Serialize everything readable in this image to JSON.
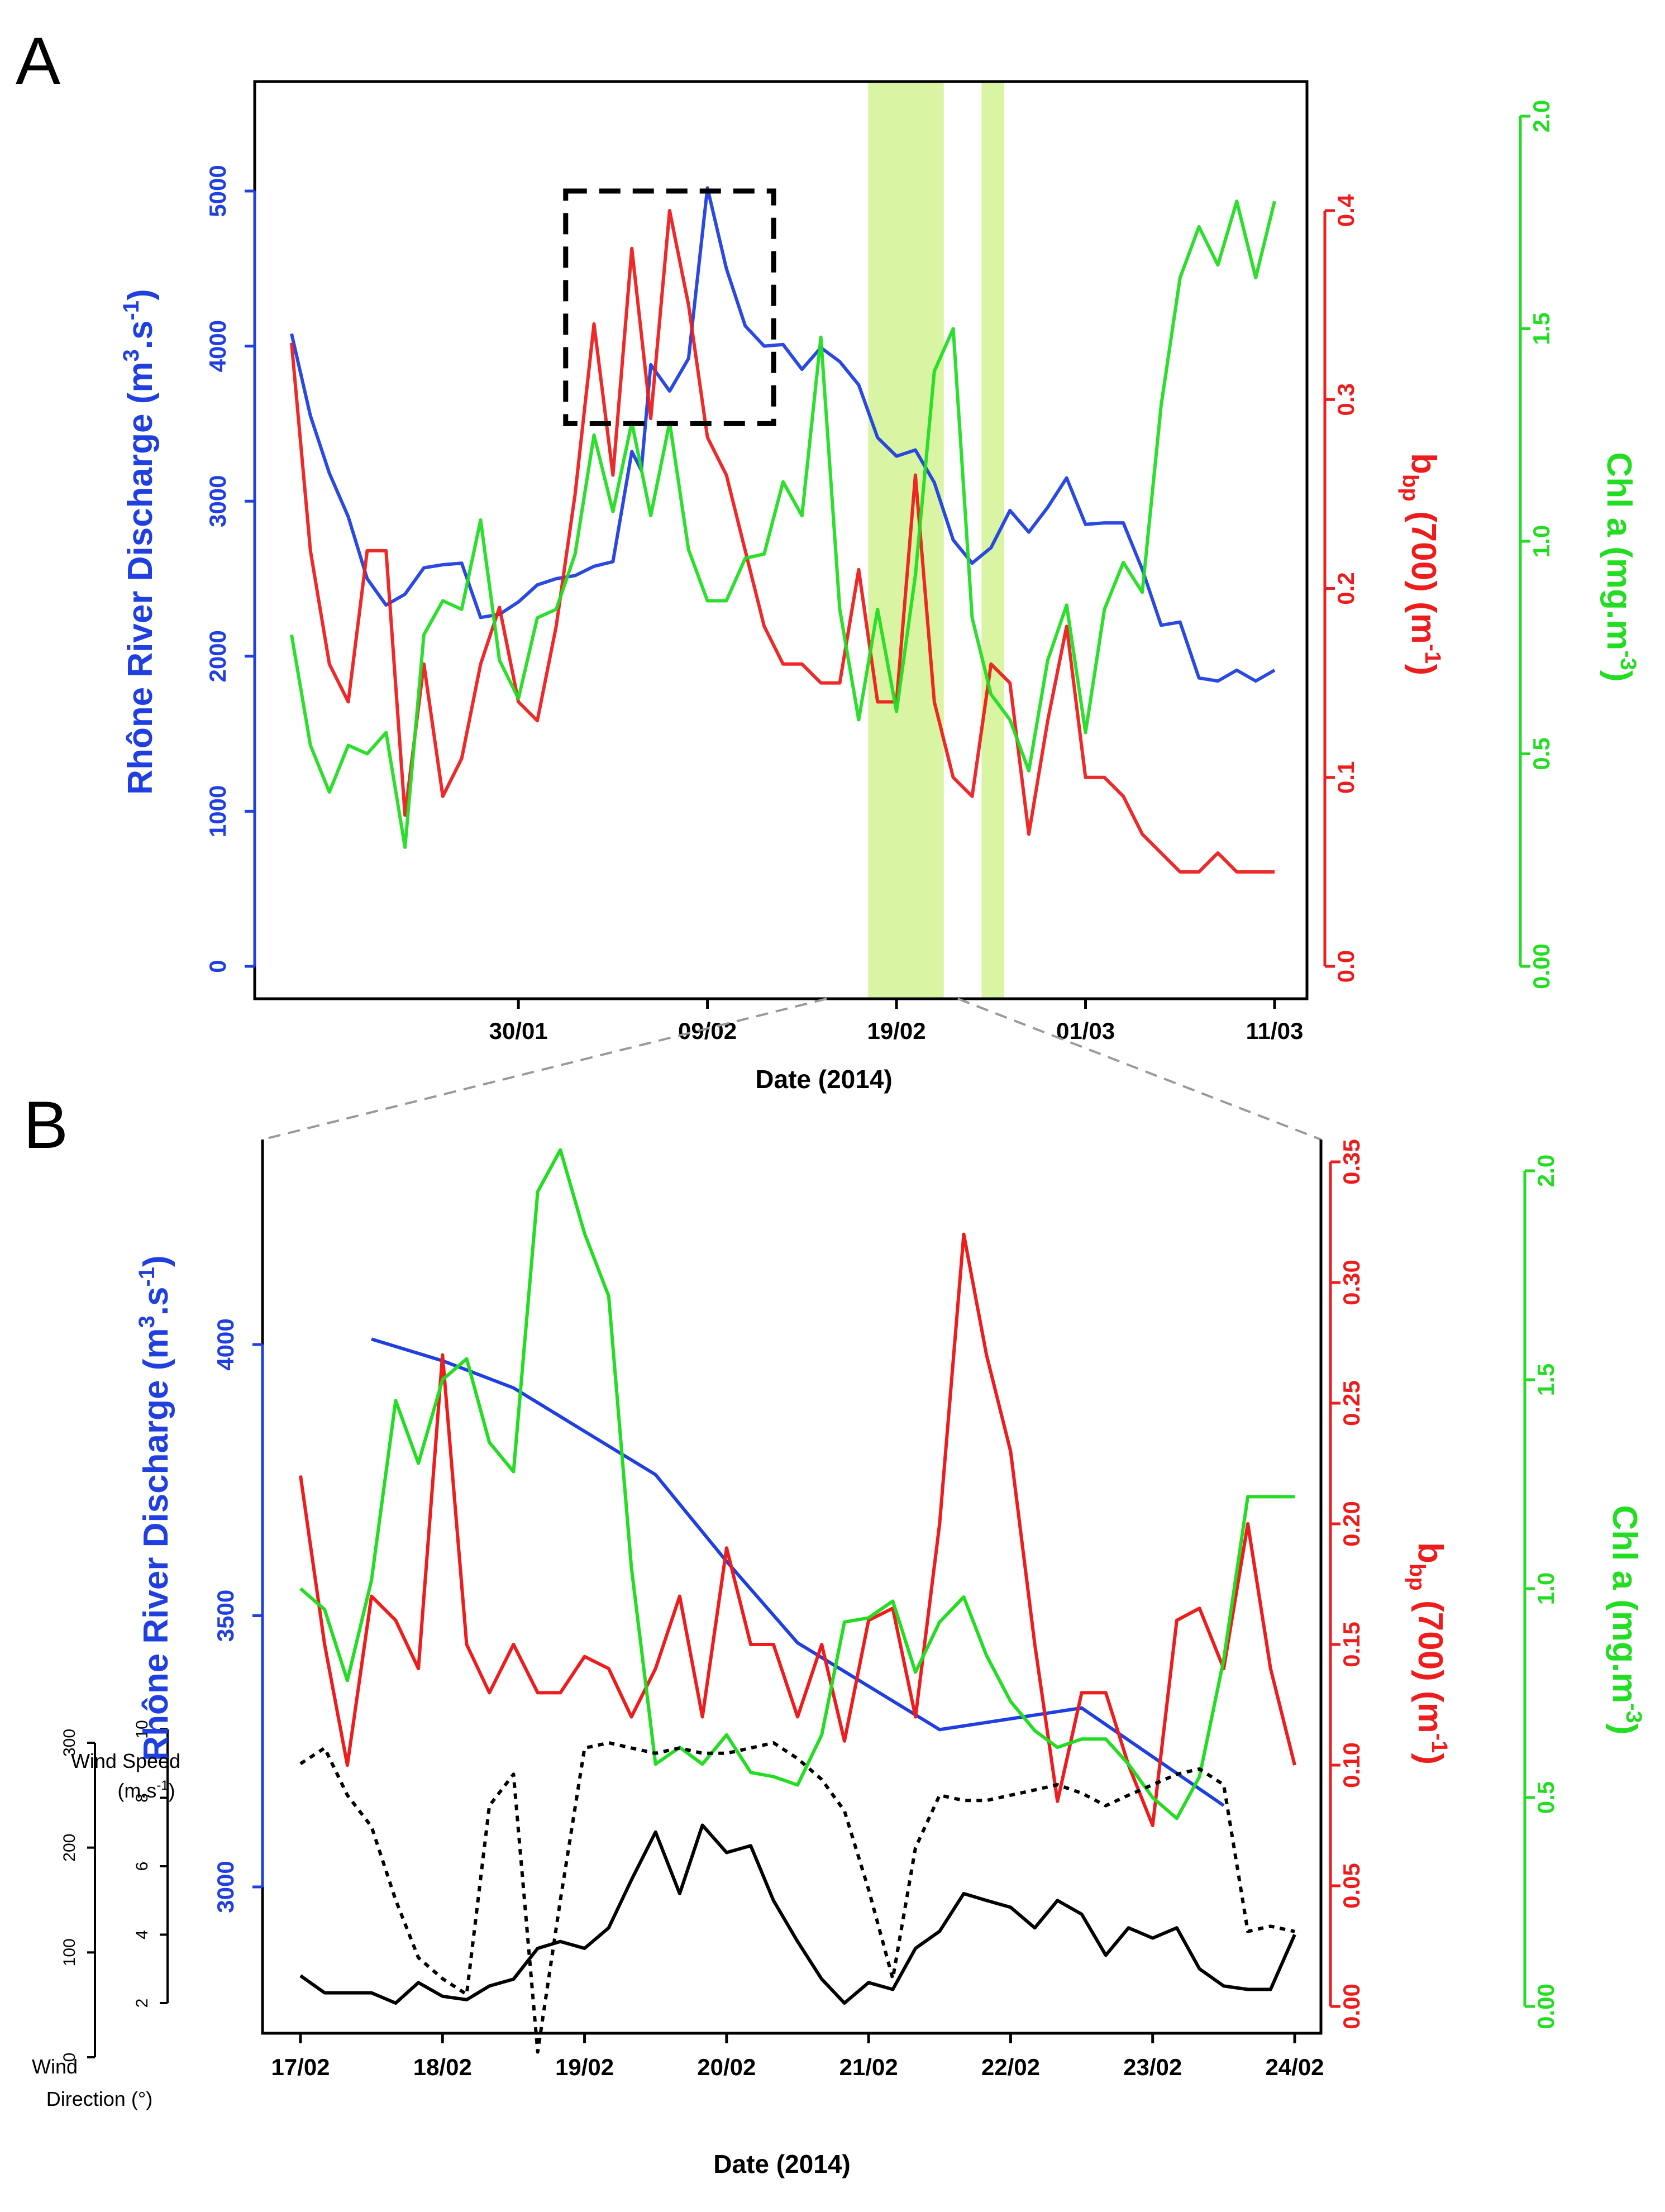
{
  "colors": {
    "discharge": "#1f3fe0",
    "bbp": "#ee1c1c",
    "chl": "#22dd22",
    "highlight": "#d9f5a3",
    "axis": "#000000"
  },
  "chart_data": [
    {
      "panel": "A",
      "type": "line",
      "xlabel": "Date (2014)",
      "x_ticks": [
        "30/01",
        "09/02",
        "19/02",
        "01/03",
        "11/03"
      ],
      "x_tick_days": [
        30,
        40,
        50,
        60,
        70
      ],
      "xlim_days": [
        16,
        72
      ],
      "x_unit_note": "days counted from 01/01/2014",
      "left_axis": {
        "label": "Rhône River Discharge (m3.s-1)",
        "ticks": [
          "0",
          "1000",
          "2000",
          "3000",
          "4000",
          "5000"
        ],
        "lim": [
          0,
          5600
        ]
      },
      "right_axis_1": {
        "label": "bbp (700) (m-1)",
        "ticks": [
          "0.0",
          "0.1",
          "0.2",
          "0.3",
          "0.4"
        ],
        "lim": [
          0,
          0.45
        ]
      },
      "right_axis_2": {
        "label": "Chl a (mg.m-3)",
        "ticks": [
          "0.00",
          "0.5",
          "1.0",
          "1.5",
          "2.0"
        ],
        "lim": [
          0,
          2.0
        ]
      },
      "highlight_spans_days": [
        [
          48.5,
          52.5
        ],
        [
          54.5,
          55.7
        ]
      ],
      "zoom_box": {
        "x_days": [
          32.5,
          43.5
        ],
        "y_discharge": [
          3500,
          5000
        ]
      },
      "series": [
        {
          "name": "Rhône River Discharge",
          "axis": "left",
          "x": [
            18,
            19,
            20,
            21,
            22,
            23,
            24,
            25,
            26,
            27,
            28,
            29,
            30,
            31,
            32,
            33,
            34,
            35,
            36,
            36.5,
            37,
            38,
            39,
            40,
            41,
            42,
            43,
            44,
            45,
            46,
            47,
            48,
            49,
            50,
            51,
            52,
            53,
            54,
            55,
            56,
            57,
            58,
            59,
            60,
            61,
            62,
            63,
            64,
            65,
            66,
            67,
            68,
            69,
            70
          ],
          "y": [
            4080,
            3550,
            3180,
            2900,
            2500,
            2330,
            2400,
            2570,
            2590,
            2600,
            2250,
            2270,
            2350,
            2460,
            2500,
            2520,
            2580,
            2610,
            3320,
            3200,
            3880,
            3710,
            3920,
            5020,
            4500,
            4130,
            4000,
            4010,
            3850,
            3990,
            3900,
            3750,
            3410,
            3290,
            3330,
            3120,
            2750,
            2600,
            2700,
            2940,
            2800,
            2960,
            3150,
            2850,
            2860,
            2860,
            2560,
            2200,
            2220,
            1860,
            1840,
            1910,
            1840,
            1910
          ]
        },
        {
          "name": "bbp (700)",
          "axis": "right_1",
          "x": [
            18,
            19,
            20,
            21,
            22,
            23,
            24,
            25,
            26,
            27,
            28,
            29,
            30,
            31,
            32,
            33,
            34,
            35,
            36,
            37,
            38,
            39,
            40,
            41,
            42,
            43,
            44,
            45,
            46,
            47,
            48,
            49,
            50,
            51,
            52,
            53,
            54,
            55,
            56,
            57,
            58,
            59,
            60,
            61,
            62,
            63,
            64,
            65,
            66,
            67,
            68,
            69,
            70
          ],
          "y": [
            0.33,
            0.22,
            0.16,
            0.14,
            0.22,
            0.22,
            0.08,
            0.16,
            0.09,
            0.11,
            0.16,
            0.19,
            0.14,
            0.13,
            0.18,
            0.25,
            0.34,
            0.26,
            0.38,
            0.29,
            0.4,
            0.35,
            0.28,
            0.26,
            0.22,
            0.18,
            0.16,
            0.16,
            0.15,
            0.15,
            0.21,
            0.14,
            0.14,
            0.26,
            0.14,
            0.1,
            0.09,
            0.16,
            0.15,
            0.07,
            0.13,
            0.18,
            0.1,
            0.1,
            0.09,
            0.07,
            0.06,
            0.05,
            0.05,
            0.06,
            0.05,
            0.05,
            0.05
          ]
        },
        {
          "name": "Chl a",
          "axis": "right_2",
          "x": [
            18,
            19,
            20,
            21,
            22,
            23,
            24,
            25,
            26,
            27,
            28,
            29,
            30,
            31,
            32,
            33,
            34,
            35,
            36,
            37,
            38,
            39,
            40,
            41,
            42,
            43,
            44,
            45,
            46,
            47,
            48,
            49,
            50,
            51,
            52,
            53,
            54,
            55,
            56,
            57,
            58,
            59,
            60,
            61,
            62,
            63,
            64,
            65,
            66,
            67,
            68,
            69,
            70
          ],
          "y": [
            0.78,
            0.52,
            0.41,
            0.52,
            0.5,
            0.55,
            0.28,
            0.78,
            0.86,
            0.84,
            1.05,
            0.72,
            0.63,
            0.82,
            0.84,
            0.97,
            1.25,
            1.07,
            1.28,
            1.06,
            1.28,
            0.98,
            0.86,
            0.86,
            0.96,
            0.97,
            1.14,
            1.06,
            1.48,
            0.84,
            0.58,
            0.84,
            0.6,
            0.92,
            1.4,
            1.5,
            0.82,
            0.64,
            0.58,
            0.46,
            0.72,
            0.85,
            0.55,
            0.84,
            0.95,
            0.88,
            1.32,
            1.62,
            1.74,
            1.65,
            1.8,
            1.62,
            1.8
          ]
        }
      ]
    },
    {
      "panel": "B",
      "type": "line",
      "xlabel": "Date (2014)",
      "x_ticks": [
        "17/02",
        "18/02",
        "19/02",
        "20/02",
        "21/02",
        "22/02",
        "23/02",
        "24/02"
      ],
      "x_tick_days": [
        0,
        1,
        2,
        3,
        4,
        5,
        6,
        7
      ],
      "xlim_days": [
        -0.27,
        7.2
      ],
      "x_unit_note": "days counted from 17/02/2014",
      "left_axis": {
        "label": "Rhône River Discharge (m3.s-1)",
        "ticks": [
          "3000",
          "3500",
          "4000"
        ],
        "lim": [
          2750,
          4370
        ]
      },
      "right_axis_1": {
        "label": "bbp (700) (m-1)",
        "ticks": [
          "0.00",
          "0.05",
          "0.10",
          "0.15",
          "0.20",
          "0.25",
          "0.30",
          "0.35"
        ],
        "lim": [
          -0.01,
          0.35
        ]
      },
      "right_axis_2": {
        "label": "Chl a (mg.m-3)",
        "ticks": [
          "0.00",
          "0.5",
          "1.0",
          "1.5",
          "2.0"
        ],
        "lim": [
          -0.1,
          2.0
        ]
      },
      "series": [
        {
          "name": "Rhône River Discharge",
          "axis": "left",
          "x": [
            0.5,
            1.0,
            1.5,
            2.0,
            2.5,
            3.0,
            3.5,
            4.0,
            4.5,
            5.0,
            5.5,
            6.0,
            6.5
          ],
          "y": [
            4010,
            3970,
            3920,
            3840,
            3760,
            3600,
            3450,
            3370,
            3290,
            3310,
            3330,
            3240,
            3150
          ]
        },
        {
          "name": "bbp (700)",
          "axis": "right_1",
          "x": [
            0.0,
            0.17,
            0.33,
            0.5,
            0.67,
            0.83,
            1.0,
            1.17,
            1.33,
            1.5,
            1.67,
            1.83,
            2.0,
            2.17,
            2.33,
            2.5,
            2.67,
            2.83,
            3.0,
            3.17,
            3.33,
            3.5,
            3.67,
            3.83,
            4.0,
            4.17,
            4.33,
            4.5,
            4.67,
            4.83,
            5.0,
            5.17,
            5.33,
            5.5,
            5.67,
            5.83,
            6.0,
            6.17,
            6.33,
            6.5,
            6.67,
            6.83,
            7.0
          ],
          "y": [
            0.22,
            0.15,
            0.1,
            0.17,
            0.16,
            0.14,
            0.27,
            0.15,
            0.13,
            0.15,
            0.13,
            0.13,
            0.145,
            0.14,
            0.12,
            0.14,
            0.17,
            0.12,
            0.19,
            0.15,
            0.15,
            0.12,
            0.15,
            0.11,
            0.16,
            0.165,
            0.12,
            0.2,
            0.32,
            0.27,
            0.23,
            0.15,
            0.085,
            0.13,
            0.13,
            0.1,
            0.075,
            0.16,
            0.165,
            0.14,
            0.2,
            0.14,
            0.1
          ]
        },
        {
          "name": "Chl a",
          "axis": "right_2",
          "x": [
            0.0,
            0.17,
            0.33,
            0.5,
            0.67,
            0.83,
            1.0,
            1.17,
            1.33,
            1.5,
            1.67,
            1.83,
            2.0,
            2.17,
            2.33,
            2.5,
            2.67,
            2.83,
            3.0,
            3.17,
            3.33,
            3.5,
            3.67,
            3.83,
            4.0,
            4.17,
            4.33,
            4.5,
            4.67,
            4.83,
            5.0,
            5.17,
            5.33,
            5.5,
            5.67,
            5.83,
            6.0,
            6.17,
            6.33,
            6.5,
            6.67,
            6.83,
            7.0
          ],
          "y": [
            1.0,
            0.95,
            0.78,
            1.02,
            1.45,
            1.3,
            1.5,
            1.55,
            1.35,
            1.28,
            1.95,
            2.05,
            1.85,
            1.7,
            1.05,
            0.58,
            0.62,
            0.58,
            0.65,
            0.56,
            0.55,
            0.53,
            0.65,
            0.92,
            0.93,
            0.97,
            0.8,
            0.92,
            0.98,
            0.84,
            0.73,
            0.66,
            0.62,
            0.64,
            0.64,
            0.58,
            0.5,
            0.45,
            0.55,
            0.83,
            1.22,
            1.22,
            1.22
          ]
        },
        {
          "name": "Wind Speed",
          "axis": "wind_speed",
          "x": [
            0.0,
            0.17,
            0.33,
            0.5,
            0.67,
            0.83,
            1.0,
            1.17,
            1.33,
            1.5,
            1.67,
            1.83,
            2.0,
            2.17,
            2.33,
            2.5,
            2.67,
            2.83,
            3.0,
            3.17,
            3.33,
            3.5,
            3.67,
            3.83,
            4.0,
            4.17,
            4.33,
            4.5,
            4.67,
            4.83,
            5.0,
            5.17,
            5.33,
            5.5,
            5.67,
            5.83,
            6.0,
            6.17,
            6.33,
            6.5,
            6.67,
            6.83,
            7.0
          ],
          "y": [
            2.8,
            2.3,
            2.3,
            2.3,
            2.0,
            2.6,
            2.2,
            2.1,
            2.5,
            2.7,
            3.6,
            3.8,
            3.6,
            4.2,
            5.6,
            7.0,
            5.2,
            7.2,
            6.4,
            6.6,
            5.0,
            3.8,
            2.7,
            2.0,
            2.6,
            2.4,
            3.6,
            4.1,
            5.2,
            5.0,
            4.8,
            4.2,
            5.0,
            4.6,
            3.4,
            4.2,
            3.9,
            4.2,
            3.0,
            2.5,
            2.4,
            2.4,
            4.0
          ]
        },
        {
          "name": "Wind Direction",
          "axis": "wind_direction",
          "x": [
            0.0,
            0.17,
            0.33,
            0.5,
            0.67,
            0.83,
            1.0,
            1.17,
            1.33,
            1.5,
            1.67,
            1.83,
            2.0,
            2.17,
            2.33,
            2.5,
            2.67,
            2.83,
            3.0,
            3.17,
            3.33,
            3.5,
            3.67,
            3.83,
            4.0,
            4.17,
            4.33,
            4.5,
            4.67,
            4.83,
            5.0,
            5.17,
            5.33,
            5.5,
            5.67,
            5.83,
            6.0,
            6.17,
            6.33,
            6.5,
            6.67,
            6.83,
            7.0
          ],
          "y": [
            280,
            295,
            250,
            220,
            150,
            95,
            75,
            60,
            240,
            270,
            5,
            150,
            295,
            300,
            295,
            290,
            295,
            290,
            290,
            295,
            300,
            285,
            265,
            235,
            160,
            75,
            200,
            250,
            245,
            245,
            250,
            255,
            260,
            252,
            240,
            250,
            260,
            270,
            275,
            260,
            120,
            125,
            120
          ]
        }
      ],
      "wind_axes": {
        "speed_label": "Wind Speed",
        "speed_unit": "(m.s-1)",
        "speed_ticks": [
          "2",
          "4",
          "6",
          "8",
          "10"
        ],
        "direction_label": "Wind",
        "direction_label_2": "Direction (°)",
        "direction_ticks": [
          "0",
          "100",
          "200",
          "300"
        ]
      }
    }
  ],
  "labels": {
    "panel_a": "A",
    "panel_b": "B",
    "discharge_text": "Rhône River Discharge (m",
    "discharge_sup": "3",
    "discharge_mid": ".s",
    "discharge_sup2": "-1",
    "discharge_end": ")",
    "bbp_main": "b",
    "bbp_sub": "bp",
    "bbp_rest": " (700) (m",
    "bbp_sup": "-1",
    "bbp_end": ")",
    "chl_main": "Chl a (mg.m",
    "chl_sup": "-3",
    "chl_end": ")",
    "xlabel_a": "Date (2014)",
    "xlabel_b": "Date (2014)",
    "wind_speed_1": "Wind Speed",
    "wind_speed_2": "(m.s",
    "wind_speed_sup": "-1",
    "wind_speed_end": ")",
    "wind_dir_1": "Wind",
    "wind_dir_2": "Direction (°)"
  }
}
